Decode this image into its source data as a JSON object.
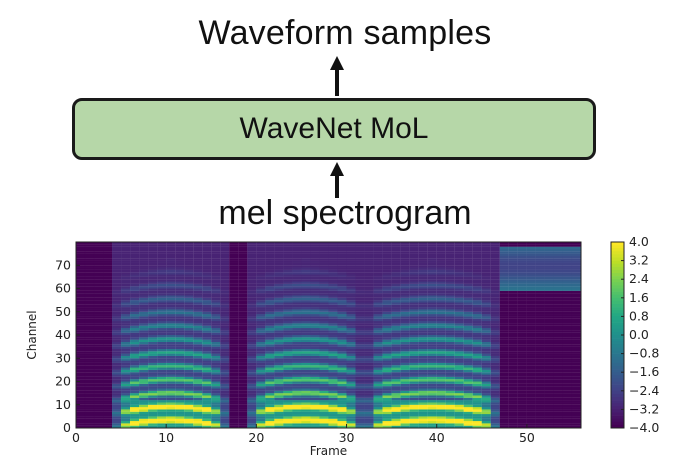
{
  "diagram": {
    "output_label": "Waveform samples",
    "model_label": "WaveNet MoL",
    "input_label": "mel spectrogram",
    "box_color": "#b6d7a8"
  },
  "chart_data": {
    "type": "heatmap",
    "xlabel": "Frame",
    "ylabel": "Channel",
    "xlim": [
      0,
      56
    ],
    "ylim": [
      0,
      80
    ],
    "xticks": [
      "0",
      "10",
      "20",
      "30",
      "40",
      "50"
    ],
    "yticks": [
      "0",
      "10",
      "20",
      "30",
      "40",
      "50",
      "60",
      "70"
    ],
    "colorbar": {
      "ticks": [
        "4.0",
        "3.2",
        "2.4",
        "1.6",
        "0.8",
        "0.0",
        "−0.8",
        "−1.6",
        "−2.4",
        "−3.2",
        "−4.0"
      ],
      "min": -4.0,
      "max": 4.0
    },
    "colormap": "viridis",
    "grid": false
  }
}
